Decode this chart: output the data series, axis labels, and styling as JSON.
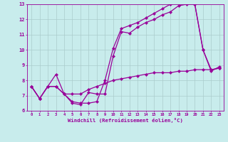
{
  "xlabel": "Windchill (Refroidissement éolien,°C)",
  "background_color": "#c8ecec",
  "grid_color": "#aacccc",
  "line_color": "#990099",
  "xlim": [
    -0.5,
    23.5
  ],
  "ylim": [
    6,
    13
  ],
  "xticks": [
    0,
    1,
    2,
    3,
    4,
    5,
    6,
    7,
    8,
    9,
    10,
    11,
    12,
    13,
    14,
    15,
    16,
    17,
    18,
    19,
    20,
    21,
    22,
    23
  ],
  "yticks": [
    6,
    7,
    8,
    9,
    10,
    11,
    12,
    13
  ],
  "series1": {
    "x": [
      0,
      1,
      2,
      3,
      4,
      5,
      6,
      7,
      8,
      9,
      10,
      11,
      12,
      13,
      14,
      15,
      16,
      17,
      18,
      19,
      20,
      21,
      22,
      23
    ],
    "y": [
      7.6,
      6.8,
      7.6,
      7.6,
      7.1,
      6.5,
      6.4,
      7.2,
      7.1,
      7.1,
      9.6,
      11.2,
      11.1,
      11.5,
      11.8,
      12.0,
      12.3,
      12.5,
      12.9,
      13.0,
      13.0,
      10.0,
      8.7,
      8.8
    ]
  },
  "series2": {
    "x": [
      0,
      1,
      2,
      3,
      4,
      5,
      6,
      7,
      8,
      9,
      10,
      11,
      12,
      13,
      14,
      15,
      16,
      17,
      18,
      19,
      20,
      21,
      22,
      23
    ],
    "y": [
      7.6,
      6.8,
      7.6,
      8.4,
      7.1,
      6.6,
      6.5,
      6.5,
      6.6,
      8.0,
      10.1,
      11.4,
      11.6,
      11.8,
      12.1,
      12.4,
      12.7,
      13.0,
      13.1,
      13.2,
      13.0,
      10.0,
      8.6,
      8.9
    ]
  },
  "series3": {
    "x": [
      0,
      1,
      2,
      3,
      4,
      5,
      6,
      7,
      8,
      9,
      10,
      11,
      12,
      13,
      14,
      15,
      16,
      17,
      18,
      19,
      20,
      21,
      22,
      23
    ],
    "y": [
      7.6,
      6.8,
      7.6,
      7.6,
      7.1,
      7.1,
      7.1,
      7.4,
      7.6,
      7.8,
      8.0,
      8.1,
      8.2,
      8.3,
      8.4,
      8.5,
      8.5,
      8.5,
      8.6,
      8.6,
      8.7,
      8.7,
      8.7,
      8.8
    ]
  }
}
